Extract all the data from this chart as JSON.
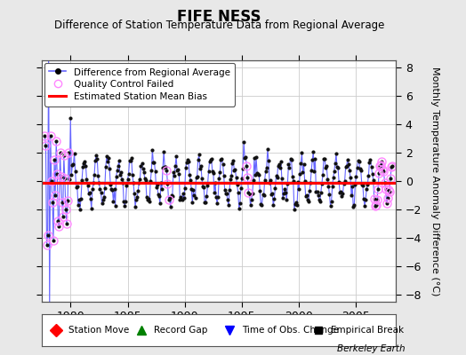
{
  "title": "FIFE NESS",
  "subtitle": "Difference of Station Temperature Data from Regional Average",
  "ylabel_right": "Monthly Temperature Anomaly Difference (°C)",
  "xlim": [
    1977.5,
    2008.5
  ],
  "ylim": [
    -8.5,
    8.5
  ],
  "yticks": [
    -8,
    -6,
    -4,
    -2,
    0,
    2,
    4,
    6,
    8
  ],
  "xticks": [
    1980,
    1985,
    1990,
    1995,
    2000,
    2005
  ],
  "bias_line_y": -0.15,
  "background_color": "#e8e8e8",
  "plot_bg_color": "#ffffff",
  "line_color": "#6666ff",
  "marker_color": "#111111",
  "bias_color": "#ff0000",
  "qc_color": "#ff88ff",
  "watermark": "Berkeley Earth",
  "seed": 42,
  "qc_early_count": 26,
  "qc_end_year": 2006.5
}
